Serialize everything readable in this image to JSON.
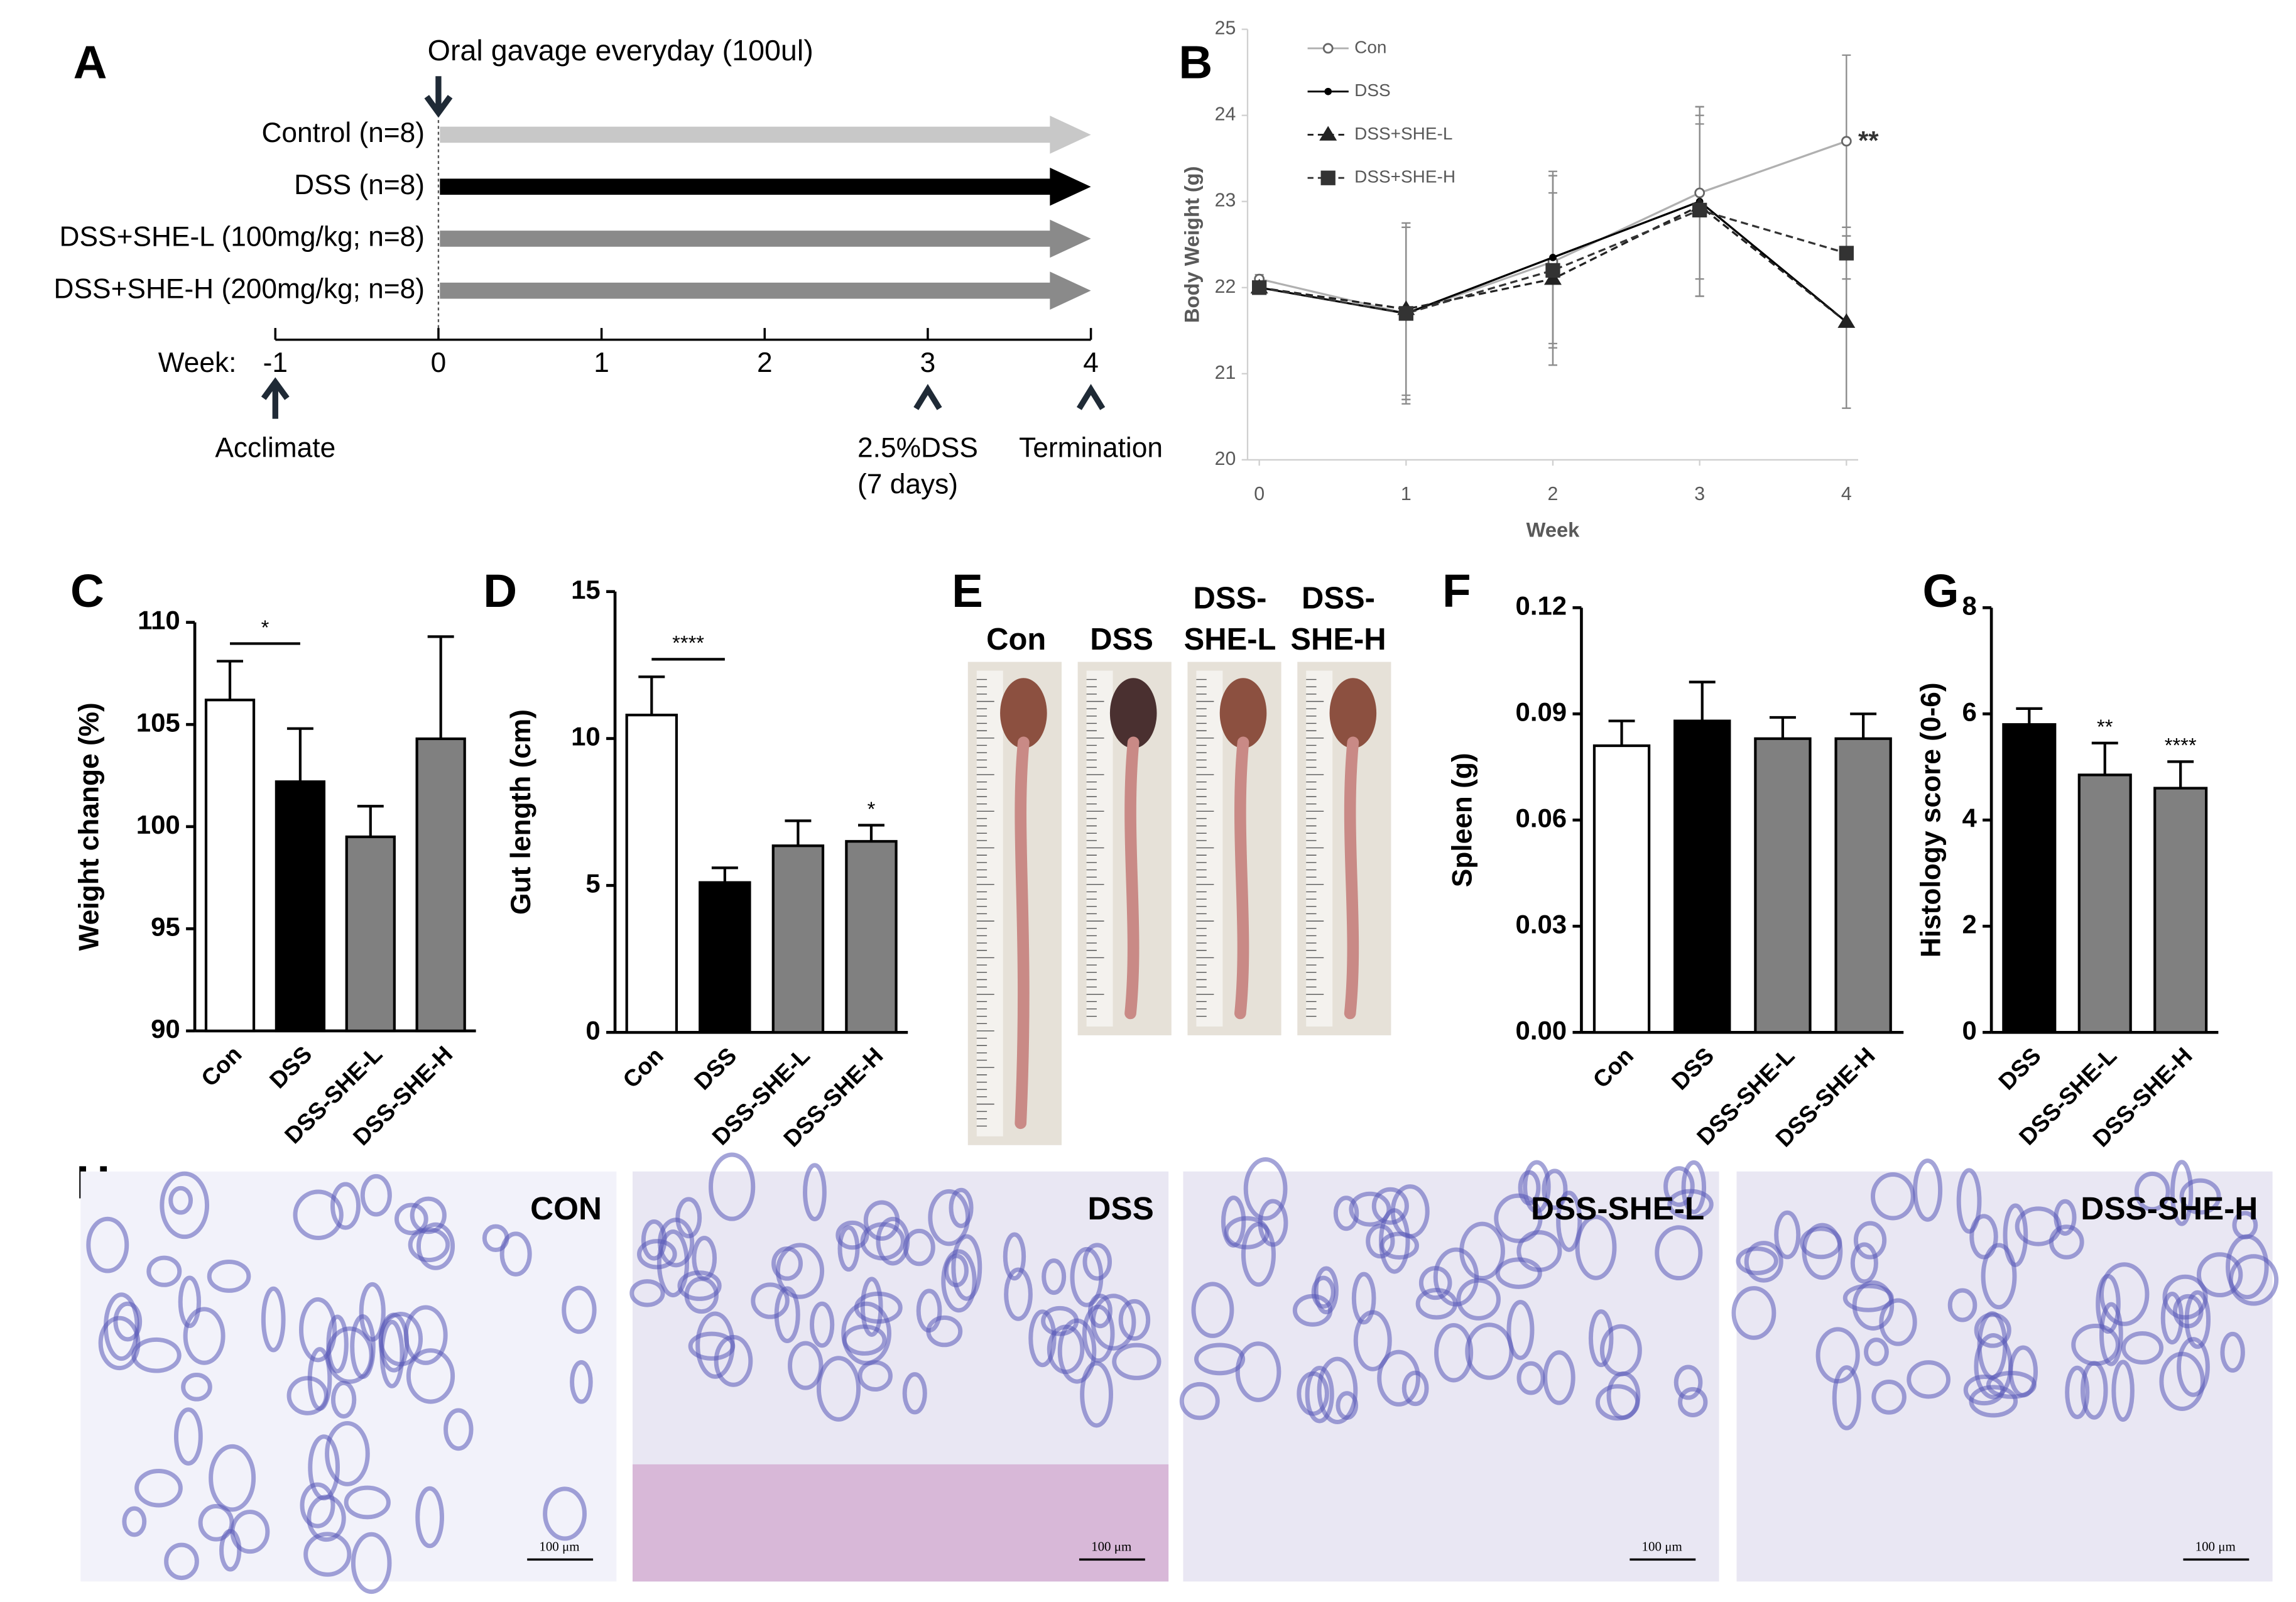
{
  "panel_labels": [
    "A",
    "B",
    "C",
    "D",
    "E",
    "F",
    "G",
    "H"
  ],
  "timeline": {
    "top_note": "Oral gavage everyday (100ul)",
    "groups": [
      {
        "name": "Control (n=8)",
        "color": "#c8c8c8"
      },
      {
        "name": "DSS (n=8)",
        "color": "#000000"
      },
      {
        "name": "DSS+SHE-L (100mg/kg; n=8)",
        "color": "#8a8a8a"
      },
      {
        "name": "DSS+SHE-H (200mg/kg; n=8)",
        "color": "#8a8a8a"
      }
    ],
    "week_label": "Week:",
    "weeks": [
      -1,
      0,
      1,
      2,
      3,
      4
    ],
    "annotations": [
      {
        "week": -1,
        "lines": [
          "Acclimate"
        ]
      },
      {
        "week": 3,
        "lines": [
          "2.5%DSS",
          "(7 days)"
        ]
      },
      {
        "week": 4,
        "lines": [
          "Termination"
        ]
      }
    ]
  },
  "chart_data": [
    {
      "type": "line",
      "x_label": "Week",
      "y_label": "Body Weight (g)",
      "x": [
        0,
        1,
        2,
        3,
        4
      ],
      "xlim": [
        0,
        4
      ],
      "xticks": [
        0,
        1,
        2,
        3,
        4
      ],
      "ylim": [
        20,
        25
      ],
      "yticks": [
        20,
        21,
        22,
        23,
        24,
        25
      ],
      "grid": false,
      "legend": "top-left",
      "series": [
        {
          "name": "Con",
          "color": "#b0b0b0",
          "dash": false,
          "marker": "circle-open",
          "values": [
            22.1,
            21.7,
            22.3,
            23.1,
            23.7
          ],
          "errors": [
            0.05,
            1.0,
            1.0,
            1.0,
            1.0
          ],
          "significance": [
            null,
            null,
            null,
            null,
            "**"
          ]
        },
        {
          "name": "DSS",
          "color": "#000000",
          "dash": false,
          "marker": "circle",
          "values": [
            22.0,
            21.7,
            22.35,
            23.0,
            21.6
          ],
          "errors": [
            0.05,
            1.05,
            1.0,
            1.1,
            1.0
          ]
        },
        {
          "name": "DSS+SHE-L",
          "color": "#222222",
          "dash": true,
          "marker": "triangle",
          "values": [
            22.0,
            21.75,
            22.1,
            22.95,
            21.6
          ],
          "errors": [
            0.05,
            1.0,
            1.0,
            1.05,
            1.0
          ]
        },
        {
          "name": "DSS+SHE-H",
          "color": "#333333",
          "dash": true,
          "marker": "square",
          "values": [
            22.0,
            21.7,
            22.2,
            22.9,
            22.4
          ],
          "errors": [
            0.05,
            1.0,
            1.1,
            1.0,
            0.3
          ]
        }
      ]
    },
    {
      "type": "bar",
      "y_label": "Weight change (%)",
      "categories": [
        "Con",
        "DSS",
        "DSS-SHE-L",
        "DSS-SHE-H"
      ],
      "values": [
        106.2,
        102.2,
        99.5,
        104.3
      ],
      "errors": [
        1.9,
        2.6,
        1.5,
        5.0
      ],
      "colors": [
        "#ffffff",
        "#000000",
        "#808080",
        "#808080"
      ],
      "ylim": [
        90,
        110
      ],
      "yticks": [
        90,
        95,
        100,
        105,
        110
      ],
      "brackets": [
        {
          "label": "*",
          "categories": [
            "Con",
            "DSS"
          ]
        }
      ]
    },
    {
      "type": "bar",
      "y_label": "Gut length (cm)",
      "categories": [
        "Con",
        "DSS",
        "DSS-SHE-L",
        "DSS-SHE-H"
      ],
      "values": [
        10.8,
        5.1,
        6.35,
        6.5
      ],
      "errors": [
        1.3,
        0.5,
        0.85,
        0.55
      ],
      "colors": [
        "#ffffff",
        "#000000",
        "#808080",
        "#808080"
      ],
      "ylim": [
        0,
        15
      ],
      "yticks": [
        0,
        5,
        10,
        15
      ],
      "brackets": [
        {
          "label": "****",
          "categories": [
            "Con",
            "DSS"
          ]
        }
      ],
      "significance": [
        null,
        null,
        null,
        "*"
      ]
    },
    {
      "type": "bar",
      "y_label": "Spleen (g)",
      "categories": [
        "Con",
        "DSS",
        "DSS-SHE-L",
        "DSS-SHE-H"
      ],
      "values": [
        0.081,
        0.088,
        0.083,
        0.083
      ],
      "errors": [
        0.007,
        0.011,
        0.006,
        0.007
      ],
      "colors": [
        "#ffffff",
        "#000000",
        "#808080",
        "#808080"
      ],
      "ylim": [
        0,
        0.12
      ],
      "yticks": [
        {
          "value": 0,
          "label": "0.00"
        },
        {
          "value": 0.03,
          "label": "0.03"
        },
        {
          "value": 0.06,
          "label": "0.06"
        },
        {
          "value": 0.09,
          "label": "0.09"
        },
        {
          "value": 0.12,
          "label": "0.12"
        }
      ]
    },
    {
      "type": "bar",
      "y_label": "Histology score (0-6)",
      "categories": [
        "DSS",
        "DSS-SHE-L",
        "DSS-SHE-H"
      ],
      "values": [
        5.8,
        4.85,
        4.6
      ],
      "errors": [
        0.3,
        0.6,
        0.5
      ],
      "colors": [
        "#000000",
        "#808080",
        "#808080"
      ],
      "ylim": [
        0,
        8
      ],
      "yticks": [
        0,
        2,
        4,
        6,
        8
      ],
      "significance": [
        null,
        "**",
        "****"
      ]
    }
  ],
  "gut_photos": {
    "labels": [
      [
        "Con"
      ],
      [
        "DSS"
      ],
      [
        "DSS-",
        "SHE-L"
      ],
      [
        "DSS-",
        "SHE-H"
      ]
    ]
  },
  "histology": {
    "labels": [
      "CON",
      "DSS",
      "DSS-SHE-L",
      "DSS-SHE-H"
    ],
    "scale_bar": "100 μm"
  }
}
